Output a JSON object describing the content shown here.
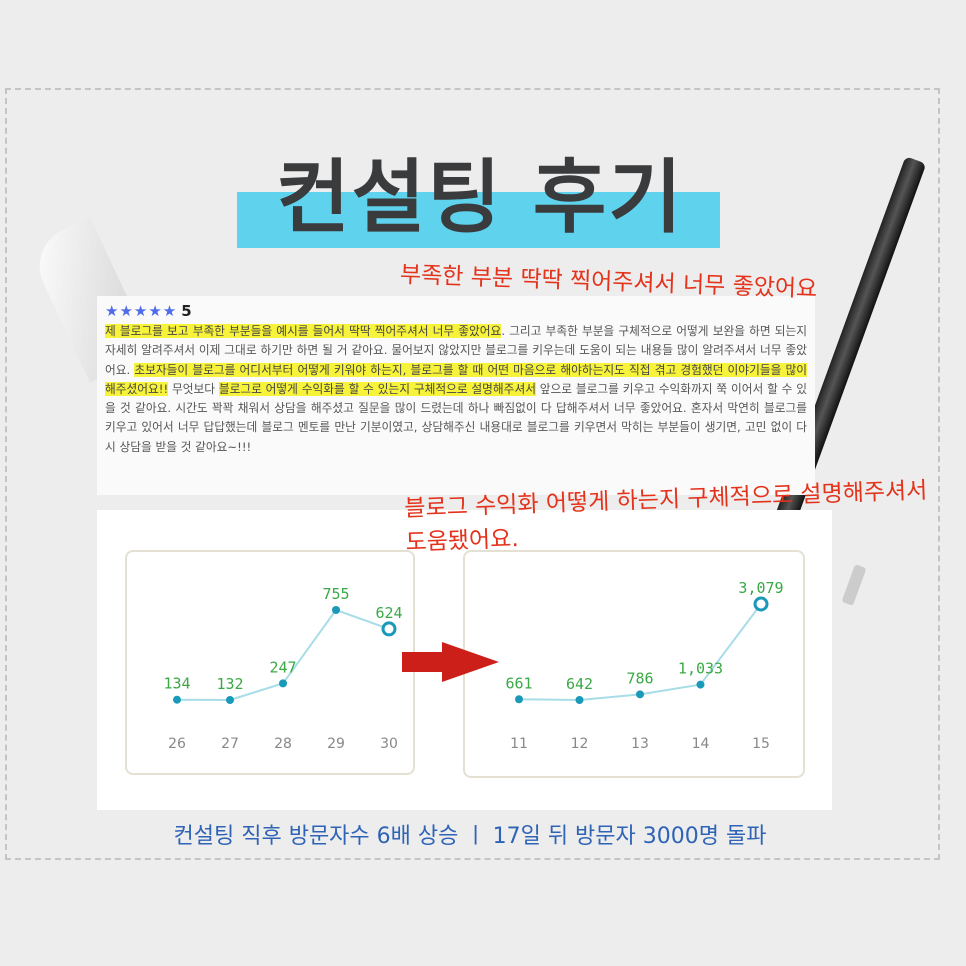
{
  "title": "컨설팅 후기",
  "annotations": {
    "top": "부족한 부분 딱딱 찍어주셔서 너무 좋았어요",
    "middle": "블로그 수익화 어떻게 하는지 구체적으로 설명해주셔서 도움됐어요."
  },
  "review": {
    "stars": "★★★★★",
    "rating": "5",
    "segments": [
      {
        "text": "제 블로그를 보고 부족한 부분들을 예시를 들어서 딱딱 찍어주셔서 너무 좋았어요",
        "highlight": true
      },
      {
        "text": ". 그리고 부족한 부분을 구체적으로 어떻게 보완을 하면 되는지 자세히 알려주셔서 이제 그대로 하기만 하면 될 거 같아요. 물어보지 않았지만 블로그를 키우는데 도움이 되는 내용들 많이 알려주셔서 너무 좋았어요. ",
        "highlight": false
      },
      {
        "text": "초보자들이 블로그를 어디서부터 어떻게 키워야 하는지, 블로그를 할 때 어떤 마음으로 해야하는지도 직접 겪고 경험했던 이야기들을 많이 해주셨어요!!",
        "highlight": true
      },
      {
        "text": " 무엇보다 ",
        "highlight": false
      },
      {
        "text": "블로그로 어떻게 수익화를 할 수 있는지 구체적으로 설명해주셔서",
        "highlight": true
      },
      {
        "text": " 앞으로 블로그를 키우고 수익화까지 쭉 이어서 할 수 있을 것 같아요. 시간도 꽉꽉 채워서 상담을 해주셨고 질문을 많이 드렸는데 하나 빠짐없이 다 답해주셔서 너무 좋았어요. 혼자서 막연히 블로그를 키우고 있어서 너무 답답했는데 블로그 멘토를 만난 기분이였고, 상담해주신 내용대로 블로그를 키우면서 막히는 부분들이 생기면, 고민 없이 다시 상담을 받을 것 같아요~!!!",
        "highlight": false
      }
    ]
  },
  "chart_data": [
    {
      "type": "line",
      "categories": [
        "26",
        "27",
        "28",
        "29",
        "30"
      ],
      "values": [
        134,
        132,
        247,
        755,
        624
      ],
      "color": "#1a9ab8",
      "label_color": "#3aa845",
      "highlight_last": true
    },
    {
      "type": "line",
      "categories": [
        "11",
        "12",
        "13",
        "14",
        "15"
      ],
      "values": [
        661,
        642,
        786,
        1033,
        3079
      ],
      "value_labels": [
        "661",
        "642",
        "786",
        "1,033",
        "3,079"
      ],
      "color": "#1a9ab8",
      "label_color": "#3aa845",
      "highlight_last": true
    }
  ],
  "caption": "컨설팅 직후 방문자수 6배 상승  ㅣ  17일 뒤 방문자 3000명 돌파",
  "colors": {
    "accent": "#5fd3ee",
    "annotation": "#e4321b",
    "caption": "#2e63b5",
    "arrow": "#cc1f1a"
  }
}
